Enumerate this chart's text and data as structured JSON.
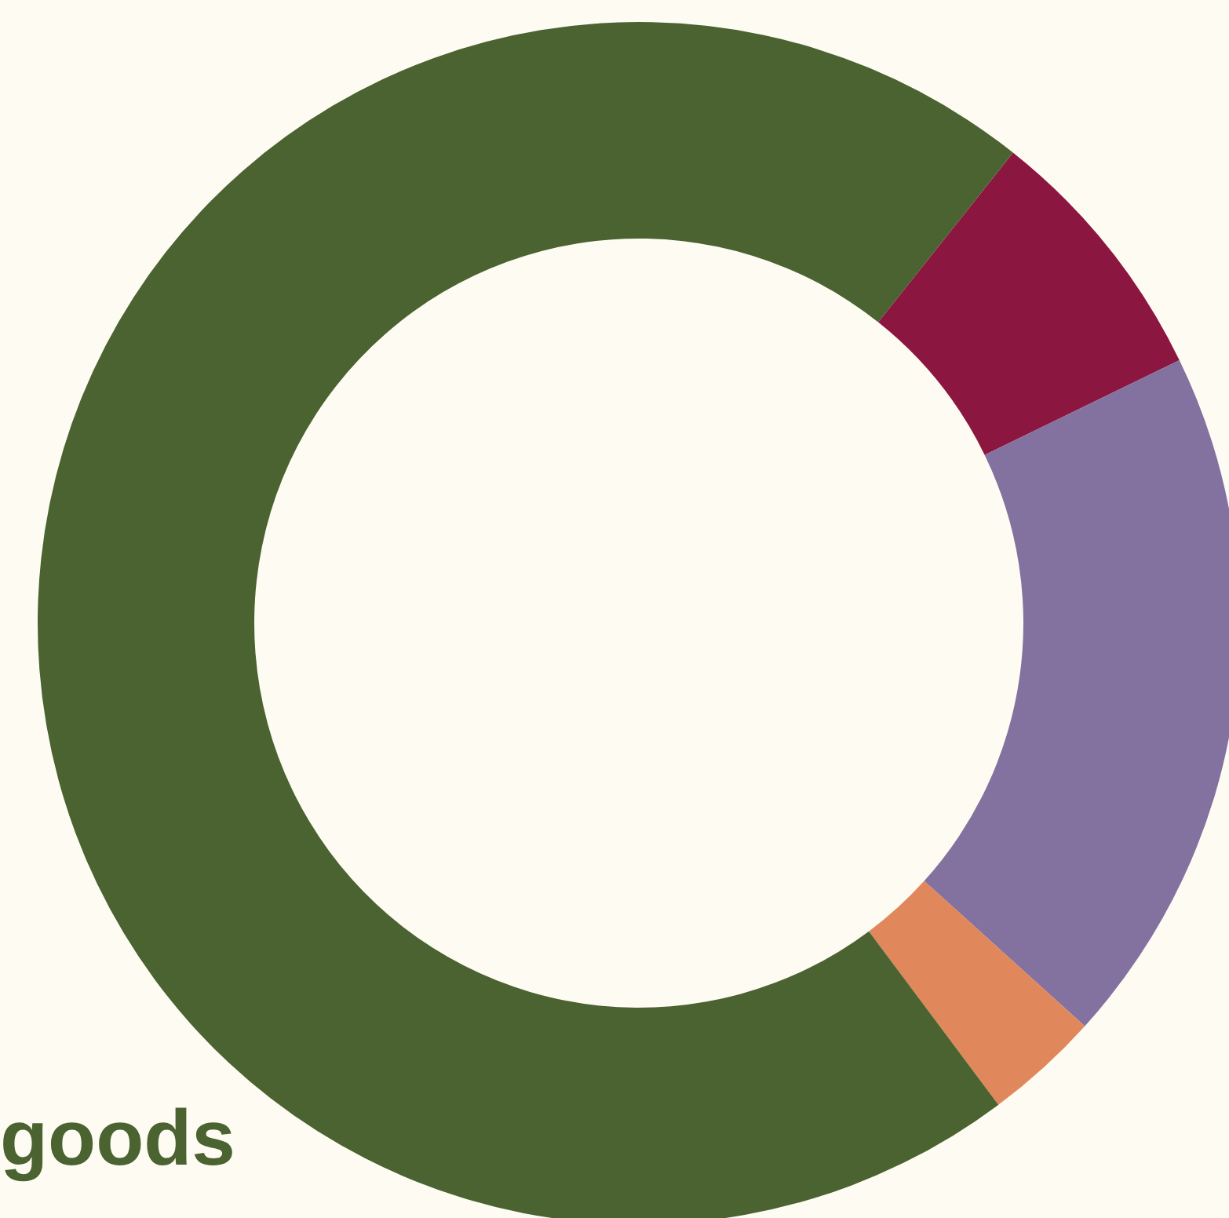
{
  "chart_data": {
    "type": "donut",
    "categories": [
      null,
      null,
      null,
      "goods"
    ],
    "values": [
      7.1,
      18.9,
      3.1,
      70.9
    ],
    "colors": [
      "#8b1740",
      "#83719f",
      "#e0875b",
      "#4a6330"
    ],
    "legend": false
  }
}
